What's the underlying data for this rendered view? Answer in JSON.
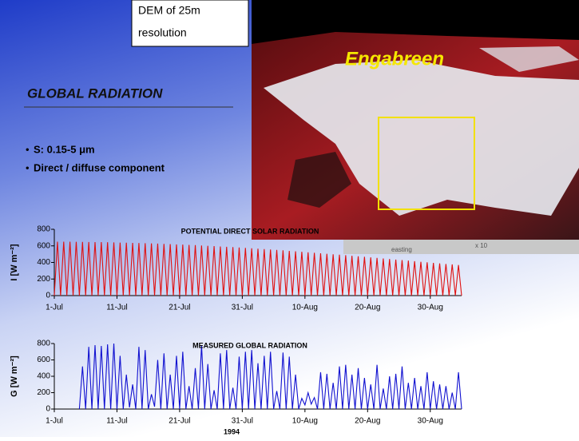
{
  "slide": {
    "dem_box": [
      "DEM of 25m",
      "resolution"
    ],
    "image_label": "Engabreen",
    "image_axis_label": "easting",
    "image_axis_scale": "x 10",
    "heading": "GLOBAL RADIATION",
    "bullets": [
      "S: 0.15-5 μm",
      "Direct / diffuse component"
    ]
  },
  "chart_data": [
    {
      "type": "line",
      "title": "POTENTIAL DIRECT SOLAR RADIATION",
      "ylabel": "I [W m⁻²]",
      "x": [
        0,
        0.5,
        1,
        1.5,
        2,
        2.5,
        3,
        3.5,
        4,
        4.5,
        5,
        5.5,
        6,
        6.5,
        7,
        7.5,
        8,
        8.5,
        9,
        9.5,
        10,
        10.5,
        11,
        11.5,
        12,
        12.5,
        13,
        13.5,
        14,
        14.5,
        15,
        15.5,
        16,
        16.5,
        17,
        17.5,
        18,
        18.5,
        19,
        19.5,
        20,
        20.5,
        21,
        21.5,
        22,
        22.5,
        23,
        23.5,
        24,
        24.5,
        25,
        25.5,
        26,
        26.5,
        27,
        27.5,
        28,
        28.5,
        29,
        29.5,
        30,
        30.5,
        31,
        31.5,
        32,
        32.5,
        33,
        33.5,
        34,
        34.5,
        35,
        35.5,
        36,
        36.5,
        37,
        37.5,
        38,
        38.5,
        39,
        39.5,
        40,
        40.5,
        41,
        41.5,
        42,
        42.5,
        43,
        43.5,
        44,
        44.5,
        45,
        45.5,
        46,
        46.5,
        47,
        47.5,
        48,
        48.5,
        49,
        49.5,
        50,
        50.5,
        51,
        51.5,
        52,
        52.5,
        53,
        53.5,
        54,
        54.5,
        55,
        55.5,
        56,
        56.5,
        57,
        57.5,
        58,
        58.5,
        59,
        59.5,
        60,
        60.5,
        61,
        61.5,
        62,
        62.5,
        63,
        63.5,
        64,
        64.5,
        65
      ],
      "series": [
        {
          "color": "#e01010",
          "values": [
            0,
            650,
            0,
            650,
            0,
            650,
            0,
            649,
            0,
            648,
            0,
            647,
            0,
            646,
            0,
            645,
            0,
            644,
            0,
            642,
            0,
            640,
            0,
            638,
            0,
            636,
            0,
            634,
            0,
            632,
            0,
            630,
            0,
            627,
            0,
            624,
            0,
            621,
            0,
            618,
            0,
            615,
            0,
            612,
            0,
            609,
            0,
            605,
            0,
            601,
            0,
            597,
            0,
            593,
            0,
            589,
            0,
            585,
            0,
            580,
            0,
            576,
            0,
            571,
            0,
            566,
            0,
            561,
            0,
            556,
            0,
            551,
            0,
            546,
            0,
            540,
            0,
            535,
            0,
            529,
            0,
            523,
            0,
            517,
            0,
            511,
            0,
            505,
            0,
            499,
            0,
            493,
            0,
            487,
            0,
            480,
            0,
            474,
            0,
            468,
            0,
            461,
            0,
            455,
            0,
            448,
            0,
            442,
            0,
            435,
            0,
            428,
            0,
            422,
            0,
            415,
            0,
            408,
            0,
            402,
            0,
            395,
            0,
            389,
            0,
            382,
            0,
            376,
            0,
            369,
            0
          ]
        }
      ],
      "xlim": [
        0,
        65
      ],
      "xticks": [
        {
          "value": 0,
          "label": "1-Jul"
        },
        {
          "value": 10,
          "label": "11-Jul"
        },
        {
          "value": 20,
          "label": "21-Jul"
        },
        {
          "value": 30,
          "label": "31-Jul"
        },
        {
          "value": 40,
          "label": "10-Aug"
        },
        {
          "value": 50,
          "label": "20-Aug"
        },
        {
          "value": 60,
          "label": "30-Aug"
        }
      ],
      "ylim": [
        0,
        800
      ],
      "yticks": [
        0,
        200,
        400,
        600,
        800
      ]
    },
    {
      "type": "line",
      "title": "MEASURED GLOBAL RADIATION",
      "ylabel": "G [W m⁻²]",
      "xlabel": "1994",
      "x": [
        4,
        4.5,
        5,
        5.5,
        6,
        6.5,
        7,
        7.5,
        8,
        8.5,
        9,
        9.5,
        10,
        10.5,
        11,
        11.5,
        12,
        12.5,
        13,
        13.5,
        14,
        14.5,
        15,
        15.5,
        16,
        16.5,
        17,
        17.5,
        18,
        18.5,
        19,
        19.5,
        20,
        20.5,
        21,
        21.5,
        22,
        22.5,
        23,
        23.5,
        24,
        24.5,
        25,
        25.5,
        26,
        26.5,
        27,
        27.5,
        28,
        28.5,
        29,
        29.5,
        30,
        30.5,
        31,
        31.5,
        32,
        32.5,
        33,
        33.5,
        34,
        34.5,
        35,
        35.5,
        36,
        36.5,
        37,
        37.5,
        38,
        38.5,
        39,
        39.5,
        40,
        40.5,
        41,
        41.5,
        42,
        42.5,
        43,
        43.5,
        44,
        44.5,
        45,
        45.5,
        46,
        46.5,
        47,
        47.5,
        48,
        48.5,
        49,
        49.5,
        50,
        50.5,
        51,
        51.5,
        52,
        52.5,
        53,
        53.5,
        54,
        54.5,
        55,
        55.5,
        56,
        56.5,
        57,
        57.5,
        58,
        58.5,
        59,
        59.5,
        60,
        60.5,
        61,
        61.5,
        62,
        62.5,
        63,
        63.5,
        64,
        64.5,
        65
      ],
      "series": [
        {
          "color": "#1010d0",
          "values": [
            0,
            520,
            0,
            760,
            0,
            780,
            0,
            770,
            0,
            790,
            0,
            800,
            0,
            650,
            0,
            420,
            20,
            300,
            0,
            760,
            0,
            720,
            0,
            180,
            30,
            600,
            0,
            680,
            0,
            420,
            0,
            650,
            0,
            700,
            0,
            280,
            0,
            500,
            0,
            780,
            0,
            550,
            0,
            230,
            0,
            680,
            0,
            720,
            0,
            260,
            0,
            640,
            0,
            700,
            0,
            720,
            0,
            560,
            0,
            650,
            0,
            700,
            0,
            220,
            0,
            690,
            0,
            640,
            0,
            420,
            0,
            130,
            50,
            200,
            60,
            140,
            0,
            450,
            0,
            430,
            0,
            320,
            0,
            520,
            0,
            540,
            0,
            420,
            0,
            500,
            0,
            380,
            0,
            300,
            0,
            540,
            0,
            250,
            0,
            400,
            0,
            430,
            0,
            520,
            0,
            320,
            0,
            380,
            0,
            280,
            0,
            450,
            0,
            340,
            0,
            300,
            0,
            280,
            0,
            200,
            0,
            450,
            0
          ]
        }
      ],
      "xlim": [
        0,
        65
      ],
      "xticks": [
        {
          "value": 0,
          "label": "1-Jul"
        },
        {
          "value": 10,
          "label": "11-Jul"
        },
        {
          "value": 20,
          "label": "21-Jul"
        },
        {
          "value": 30,
          "label": "31-Jul"
        },
        {
          "value": 40,
          "label": "10-Aug"
        },
        {
          "value": 50,
          "label": "20-Aug"
        },
        {
          "value": 60,
          "label": "30-Aug"
        }
      ],
      "ylim": [
        0,
        800
      ],
      "yticks": [
        0,
        200,
        400,
        600,
        800
      ]
    }
  ]
}
